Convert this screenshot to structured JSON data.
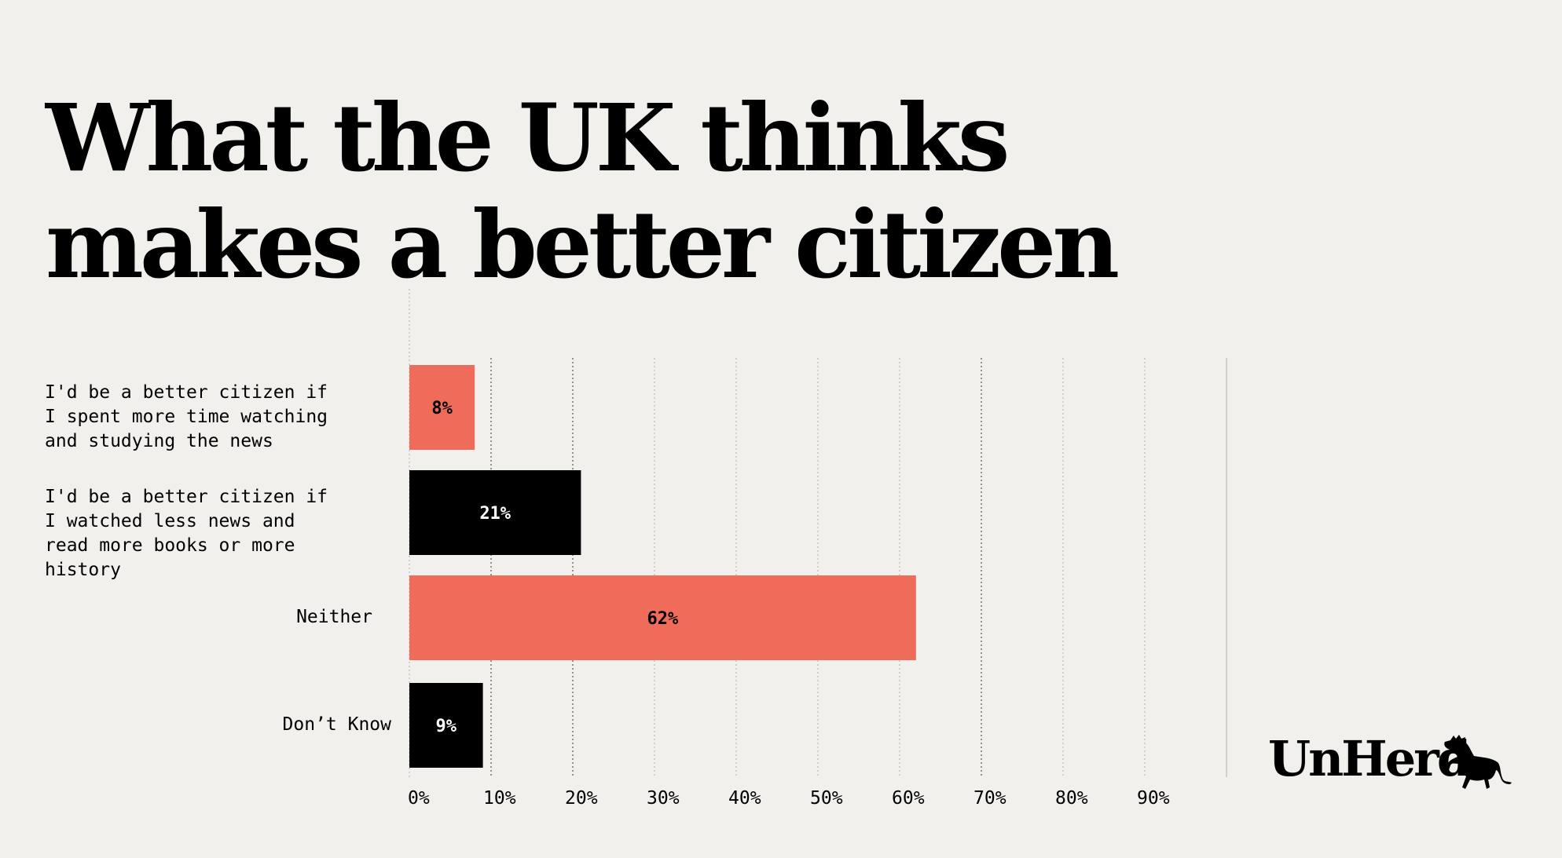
{
  "chart_data": {
    "type": "bar",
    "orientation": "horizontal",
    "title": "What the UK thinks makes a better citizen",
    "categories": [
      "I'd be a better citizen if I spent more time watching and studying the news",
      "I'd be a better citizen if I watched less news and read more books or more history",
      "Neither",
      "Don’t Know"
    ],
    "category_lines": [
      [
        "I'd be a better citizen if",
        "I spent more time watching",
        "and studying the news"
      ],
      [
        "I'd be a better citizen if",
        "I watched less news and",
        "read more books or more",
        "history"
      ],
      [
        "Neither"
      ],
      [
        "Don’t Know"
      ]
    ],
    "values": [
      8,
      21,
      62,
      9
    ],
    "data_labels": [
      "8%",
      "21%",
      "62%",
      "9%"
    ],
    "bar_colors": [
      "#ef6c5a",
      "#000000",
      "#ef6c5a",
      "#000000"
    ],
    "label_colors": [
      "#000000",
      "#ffffff",
      "#000000",
      "#ffffff"
    ],
    "xlim": [
      0,
      90
    ],
    "x_ticks": [
      "0%",
      "10%",
      "20%",
      "30%",
      "40%",
      "50%",
      "60%",
      "70%",
      "80%",
      "90%"
    ],
    "grid": true
  },
  "colors": {
    "background": "#f1f0ec",
    "accent": "#ef6c5a"
  },
  "brand": {
    "logo_text": "UnHerd",
    "logo_icon": "cow-icon"
  }
}
